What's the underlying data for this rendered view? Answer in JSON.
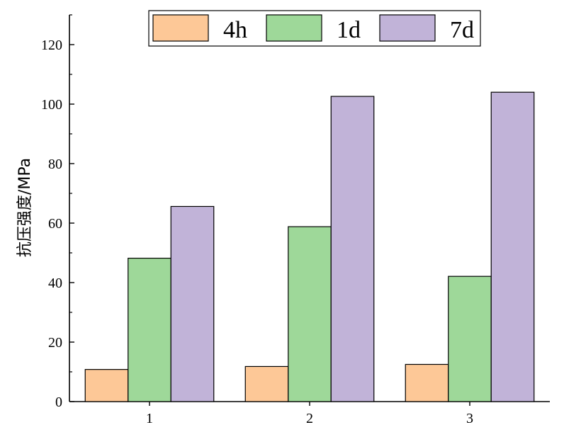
{
  "chart_data": {
    "type": "bar",
    "categories": [
      "1",
      "2",
      "3"
    ],
    "series": [
      {
        "name": "4h",
        "values": [
          10.8,
          11.8,
          12.5
        ],
        "color": "#fdc897"
      },
      {
        "name": "1d",
        "values": [
          48.2,
          58.8,
          42.1
        ],
        "color": "#9ed899"
      },
      {
        "name": "7d",
        "values": [
          65.6,
          102.6,
          104.0
        ],
        "color": "#c1b3d8"
      }
    ],
    "title": "",
    "xlabel": "",
    "ylabel": "抗压强度/MPa",
    "ylim": [
      0,
      130
    ],
    "yticks": [
      0,
      20,
      40,
      60,
      80,
      100,
      120
    ],
    "grid": false,
    "legend": "top"
  }
}
